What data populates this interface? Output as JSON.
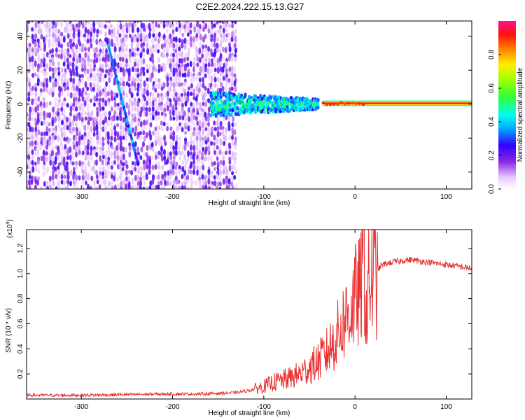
{
  "page": {
    "title": "C2E2.2024.222.15.13.G27"
  },
  "chart_data": [
    {
      "type": "heatmap",
      "title": "C2E2.2024.222.15.13.G27",
      "xlabel": "Height of straight line (km)",
      "ylabel": "Frequency (Hz)",
      "xlim": [
        -360,
        128
      ],
      "ylim": [
        -50,
        49
      ],
      "xticks": [
        -300,
        -200,
        -100,
        0,
        100
      ],
      "xtick_labels": [
        "-300",
        "-200",
        "-100",
        "0",
        "100"
      ],
      "yticks": [
        -40,
        -20,
        0,
        20,
        40
      ],
      "ytick_labels": [
        "-40",
        "-20",
        "0",
        "20",
        "40"
      ],
      "colorbar": {
        "label": "Normalized spectral amplitude",
        "range": [
          0,
          1
        ],
        "ticks": [
          0.0,
          0.2,
          0.4,
          0.6,
          0.8
        ],
        "tick_labels": [
          "0.0",
          "0.2",
          "0.4",
          "0.6",
          "0.8"
        ],
        "colormap": "rainbow (white-violet-blue-cyan-green-yellow-red-magenta)"
      },
      "features": [
        {
          "name": "noise region",
          "x_range": [
            -360,
            -130
          ],
          "freq_range": [
            -50,
            49
          ],
          "amplitude": 0.1
        },
        {
          "name": "diagonal streak",
          "from": [
            -272,
            38
          ],
          "to": [
            -238,
            -35
          ],
          "amplitude": 0.35
        },
        {
          "name": "signal band",
          "x_range": [
            -158,
            -40
          ],
          "freq_center": 0,
          "freq_halfwidth": [
            7,
            3
          ],
          "amplitude": 0.4
        },
        {
          "name": "carrier line",
          "x_range": [
            -35,
            128
          ],
          "freq": 0.5,
          "amplitude": 1.0
        }
      ]
    },
    {
      "type": "line",
      "title": "",
      "xlabel": "Height of straight line (km)",
      "ylabel": "SNR (10 * v/v)",
      "scale_label": "(x10",
      "scale_exponent": "4",
      "color": "#e83030",
      "xlim": [
        -360,
        128
      ],
      "ylim": [
        0,
        1.35
      ],
      "xticks": [
        -300,
        -200,
        -100,
        0,
        100
      ],
      "xtick_labels": [
        "-300",
        "-200",
        "-100",
        "0",
        "100"
      ],
      "yticks": [
        0.2,
        0.4,
        0.6,
        0.8,
        1.0,
        1.2
      ],
      "ytick_labels": [
        "0.2",
        "0.4",
        "0.6",
        "0.8",
        "1.0",
        "1.2"
      ],
      "series": [
        {
          "name": "SNR",
          "x": [
            -360,
            -300,
            -250,
            -200,
            -170,
            -150,
            -130,
            -115,
            -100,
            -90,
            -80,
            -70,
            -60,
            -50,
            -40,
            -30,
            -20,
            -10,
            -5,
            0,
            5,
            8,
            10,
            12,
            15,
            20,
            25,
            30,
            40,
            50,
            60,
            70,
            80,
            90,
            100,
            110,
            120,
            128
          ],
          "y": [
            0.03,
            0.03,
            0.035,
            0.04,
            0.04,
            0.045,
            0.05,
            0.07,
            0.1,
            0.13,
            0.15,
            0.17,
            0.2,
            0.25,
            0.3,
            0.38,
            0.5,
            0.65,
            0.72,
            0.8,
            0.85,
            0.95,
            1.2,
            0.65,
            0.9,
            0.97,
            1.03,
            1.07,
            1.09,
            1.1,
            1.11,
            1.1,
            1.09,
            1.08,
            1.07,
            1.06,
            1.05,
            1.04
          ]
        }
      ]
    }
  ]
}
